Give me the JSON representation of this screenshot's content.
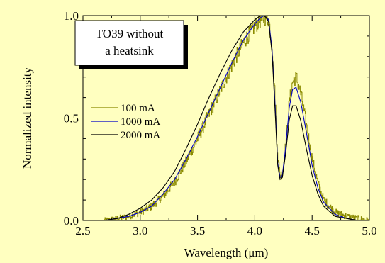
{
  "colors": {
    "background": "#FFFFC0",
    "series_100": "#8B8B00",
    "series_1000": "#0000C8",
    "series_2000": "#000000"
  },
  "chart_data": {
    "type": "line",
    "title": "",
    "xlabel": "Wavelength (μm)",
    "ylabel": "Normalized intensity",
    "xlim": [
      2.5,
      5.0
    ],
    "ylim": [
      0.0,
      1.0
    ],
    "x_ticks": [
      "2.5",
      "3.0",
      "3.5",
      "4.0",
      "4.5",
      "5.0"
    ],
    "y_ticks": [
      "0.0",
      "0.5",
      "1.0"
    ],
    "grid": false,
    "legend_position": "left-middle",
    "annotation": {
      "line1": "TO39 without",
      "line2": "a heatsink"
    },
    "series": [
      {
        "name": "100 mA",
        "noisy": true,
        "x": [
          2.68,
          2.8,
          2.9,
          3.0,
          3.1,
          3.2,
          3.3,
          3.4,
          3.5,
          3.6,
          3.7,
          3.8,
          3.9,
          4.0,
          4.05,
          4.08,
          4.1,
          4.12,
          4.15,
          4.18,
          4.2,
          4.22,
          4.24,
          4.27,
          4.3,
          4.33,
          4.36,
          4.4,
          4.45,
          4.5,
          4.55,
          4.6,
          4.7,
          4.8,
          4.9,
          5.0
        ],
        "y": [
          0.0,
          0.01,
          0.02,
          0.04,
          0.07,
          0.12,
          0.19,
          0.29,
          0.4,
          0.52,
          0.64,
          0.76,
          0.87,
          0.95,
          0.98,
          0.99,
          0.99,
          0.98,
          0.85,
          0.55,
          0.3,
          0.22,
          0.23,
          0.38,
          0.58,
          0.68,
          0.7,
          0.62,
          0.46,
          0.3,
          0.18,
          0.1,
          0.04,
          0.02,
          0.01,
          0.0
        ]
      },
      {
        "name": "1000 mA",
        "noisy": false,
        "x": [
          2.68,
          2.8,
          2.9,
          3.0,
          3.1,
          3.2,
          3.3,
          3.4,
          3.5,
          3.6,
          3.7,
          3.8,
          3.9,
          4.0,
          4.05,
          4.08,
          4.1,
          4.12,
          4.15,
          4.18,
          4.2,
          4.22,
          4.24,
          4.27,
          4.3,
          4.33,
          4.36,
          4.4,
          4.45,
          4.5,
          4.55,
          4.6,
          4.7,
          4.8,
          4.9,
          5.0
        ],
        "y": [
          0.0,
          0.01,
          0.02,
          0.04,
          0.07,
          0.13,
          0.2,
          0.3,
          0.41,
          0.53,
          0.65,
          0.77,
          0.88,
          0.96,
          0.99,
          1.0,
          0.99,
          0.98,
          0.84,
          0.53,
          0.28,
          0.21,
          0.22,
          0.36,
          0.55,
          0.64,
          0.65,
          0.58,
          0.43,
          0.27,
          0.16,
          0.09,
          0.03,
          0.01,
          0.0,
          0.0
        ]
      },
      {
        "name": "2000 mA",
        "noisy": false,
        "x": [
          2.68,
          2.8,
          2.9,
          3.0,
          3.1,
          3.2,
          3.3,
          3.4,
          3.5,
          3.6,
          3.7,
          3.8,
          3.9,
          4.0,
          4.05,
          4.08,
          4.1,
          4.12,
          4.15,
          4.18,
          4.2,
          4.22,
          4.24,
          4.27,
          4.3,
          4.33,
          4.36,
          4.4,
          4.45,
          4.5,
          4.55,
          4.6,
          4.7,
          4.8,
          4.9,
          5.0
        ],
        "y": [
          0.0,
          0.01,
          0.03,
          0.06,
          0.1,
          0.16,
          0.24,
          0.35,
          0.47,
          0.6,
          0.72,
          0.83,
          0.92,
          0.98,
          1.0,
          1.0,
          0.99,
          0.97,
          0.82,
          0.5,
          0.27,
          0.2,
          0.21,
          0.33,
          0.49,
          0.56,
          0.56,
          0.49,
          0.35,
          0.22,
          0.13,
          0.07,
          0.02,
          0.01,
          0.0,
          0.0
        ]
      }
    ]
  }
}
